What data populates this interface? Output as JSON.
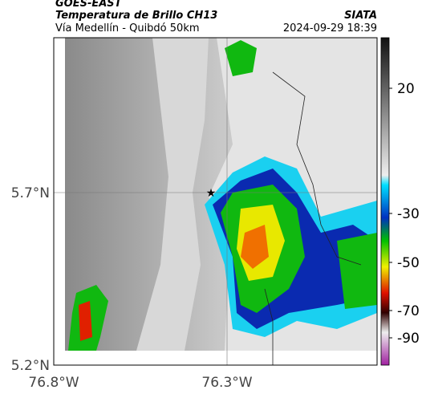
{
  "header": {
    "title": "GOES-EAST",
    "subtitle": "Temperatura de Brillo CH13",
    "location": "Vía Medellín - Quibdó 50km",
    "source": "SIATA",
    "datetime": "2024-09-29 18:39"
  },
  "axes": {
    "lat_labels": [
      "5.7°N",
      "5.2°N"
    ],
    "lon_labels": [
      "76.8°W",
      "76.3°W"
    ]
  },
  "colorbar": {
    "ticks": [
      20,
      -30,
      -50,
      -70,
      -90
    ]
  }
}
